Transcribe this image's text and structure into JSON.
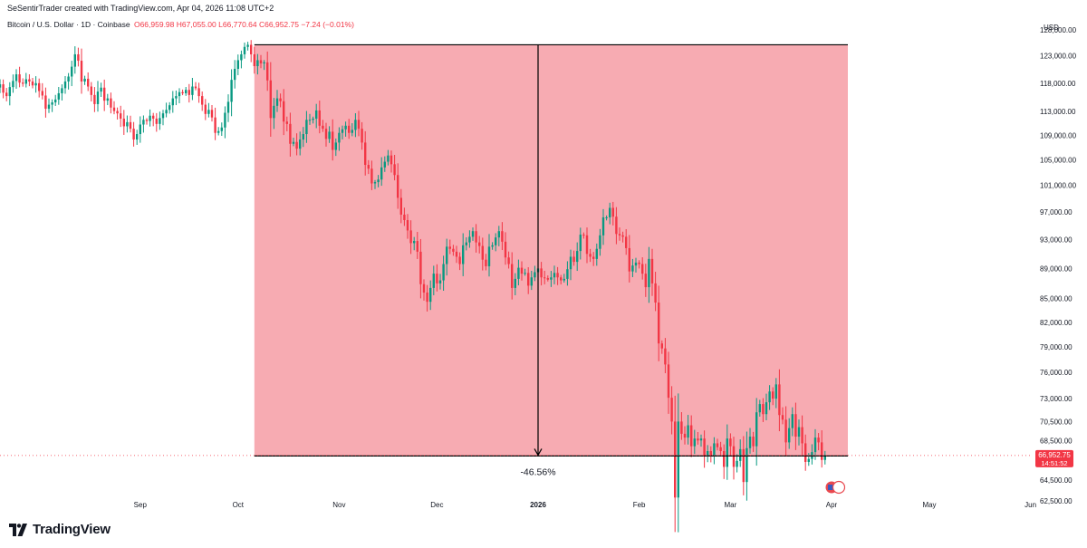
{
  "header": {
    "text": "SeSentirTrader created with TradingView.com, Apr 04, 2026 11:08 UTC+2"
  },
  "legend": {
    "symbol": "Bitcoin / U.S. Dollar · 1D · Coinbase",
    "open": "O66,959.98",
    "high": "H67,055.00",
    "low": "L66,770.64",
    "close": "C66,952.75",
    "change": "−7.24 (−0.01%)"
  },
  "colors": {
    "up": "#089981",
    "down": "#f23645",
    "range_fill": "#f7a7ae",
    "text": "#131722",
    "price_label": "#f23645"
  },
  "chart_data": {
    "type": "candlestick",
    "currency": "USD",
    "y_scale": "log",
    "ylim": [
      61200,
      128500
    ],
    "y_ticks": [
      128000,
      123000,
      118000,
      113000,
      109000,
      105000,
      101000,
      97000,
      93000,
      89000,
      85000,
      82000,
      79000,
      76000,
      73000,
      70500,
      68500,
      64500,
      62500
    ],
    "y_tick_labels": [
      "128,000.00",
      "123,000.00",
      "118,000.00",
      "113,000.00",
      "109,000.00",
      "105,000.00",
      "101,000.00",
      "97,000.00",
      "93,000.00",
      "89,000.00",
      "85,000.00",
      "82,000.00",
      "79,000.00",
      "76,000.00",
      "73,000.00",
      "70,500.00",
      "68,500.00",
      "64,500.00",
      "62,500.00"
    ],
    "x_range": [
      "2025-07-20",
      "2026-06-10"
    ],
    "x_ticks": [
      {
        "date": "2025-09-01",
        "label": "Sep",
        "bold": false
      },
      {
        "date": "2025-10-01",
        "label": "Oct",
        "bold": false
      },
      {
        "date": "2025-11-01",
        "label": "Nov",
        "bold": false
      },
      {
        "date": "2025-12-01",
        "label": "Dec",
        "bold": false
      },
      {
        "date": "2026-01-01",
        "label": "2026",
        "bold": true
      },
      {
        "date": "2026-02-01",
        "label": "Feb",
        "bold": false
      },
      {
        "date": "2026-03-01",
        "label": "Mar",
        "bold": false
      },
      {
        "date": "2026-04-01",
        "label": "Apr",
        "bold": false
      },
      {
        "date": "2026-05-01",
        "label": "May",
        "bold": false
      },
      {
        "date": "2026-06-01",
        "label": "Jun",
        "bold": false
      }
    ],
    "series": [
      {
        "start_date": "2025-07-20",
        "close": [
          117800,
          116300,
          115700,
          117300,
          118400,
          119600,
          118100,
          117900,
          118700,
          118300,
          117600,
          118000,
          116600,
          115800,
          113500,
          114200,
          114600,
          115100,
          116200,
          117100,
          118300,
          119200,
          121000,
          123300,
          122100,
          118300,
          118800,
          117400,
          115900,
          114300,
          116500,
          117200,
          114900,
          115300,
          113700,
          113100,
          112700,
          111800,
          110500,
          111200,
          110100,
          108300,
          109200,
          110800,
          111600,
          111400,
          112300,
          111800,
          110900,
          111900,
          112700,
          113300,
          114100,
          115300,
          115700,
          116400,
          116200,
          116800,
          115900,
          117400,
          117100,
          115700,
          114200,
          112600,
          113300,
          112000,
          109400,
          109700,
          110300,
          112800,
          114700,
          118600,
          120600,
          122200,
          123300,
          124700,
          125100,
          123300,
          121100,
          122200,
          121600,
          121800,
          118500,
          111900,
          114000,
          115300,
          114800,
          111300,
          110900,
          107600,
          107900,
          106800,
          108300,
          109200,
          111600,
          111600,
          111800,
          113200,
          110600,
          110100,
          108400,
          109600,
          106600,
          107800,
          109400,
          110000,
          110600,
          109400,
          109900,
          111600,
          110100,
          107800,
          104200,
          103600,
          101300,
          101500,
          101900,
          103800,
          104700,
          105700,
          104300,
          102600,
          99100,
          96600,
          95800,
          94300,
          92500,
          92800,
          91300,
          86900,
          85800,
          84600,
          86400,
          88300,
          87000,
          87400,
          89600,
          92000,
          91700,
          91300,
          90600,
          89600,
          92200,
          92600,
          93400,
          94200,
          92600,
          92100,
          90200,
          89300,
          92000,
          92200,
          93300,
          94200,
          92700,
          90500,
          89600,
          86400,
          87600,
          89100,
          88300,
          88400,
          86700,
          87800,
          88500,
          89000,
          87800,
          87700,
          87500,
          87800,
          88400,
          87800,
          87400,
          87600,
          88900,
          90600,
          89900,
          91400,
          93700,
          93600,
          91000,
          90600,
          90300,
          91700,
          93600,
          96200,
          96200,
          97600,
          96300,
          93800,
          93600,
          93400,
          91800,
          88600,
          89400,
          89800,
          89600,
          88300,
          86500,
          90300,
          87000,
          84500,
          79400,
          78800,
          76900,
          73100,
          70500,
          62800,
          70500,
          69200,
          68800,
          70100,
          67900,
          68700,
          68500,
          68700,
          66900,
          67400,
          66900,
          68200,
          67800,
          67400,
          65800,
          68700,
          67900,
          65800,
          66400,
          67600,
          64300,
          67700,
          68900,
          67900,
          71500,
          72400,
          71300,
          72600,
          73800,
          73000,
          74600,
          71200,
          70700,
          68300,
          69800,
          71300,
          68900,
          69900,
          68200,
          66300,
          66600,
          67300,
          68800,
          68300,
          66500,
          66952.75
        ]
      }
    ],
    "measure": {
      "start_date": "2025-10-06",
      "end_date": "2026-04-06",
      "top_price": 125100,
      "bottom_price": 66900,
      "label": "-46.56%",
      "arrow_date": "2026-01-01"
    },
    "current_price_label": "66,952.75",
    "countdown_label": "14:51:52"
  },
  "footer": {
    "brand": "TradingView"
  }
}
